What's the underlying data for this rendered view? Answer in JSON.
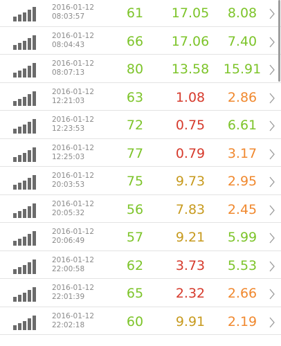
{
  "colors": {
    "green": "#7dc42a",
    "red": "#d63a2c",
    "orange": "#f0882e",
    "olive": "#c79a1e",
    "timestamp_text": "#8a8a8a",
    "divider": "#e3e3e3",
    "signal_icon": "#6b6b6b"
  },
  "icons": {
    "signal": "signal-strength-bars-icon",
    "chevron": "chevron-right-icon"
  },
  "rows": [
    {
      "date": "2016-01-12",
      "time": "08:03:57",
      "v1": "61",
      "v1_color": "green",
      "v2": "17.05",
      "v2_color": "green",
      "v3": "8.08",
      "v3_color": "green"
    },
    {
      "date": "2016-01-12",
      "time": "08:04:43",
      "v1": "66",
      "v1_color": "green",
      "v2": "17.06",
      "v2_color": "green",
      "v3": "7.40",
      "v3_color": "green"
    },
    {
      "date": "2016-01-12",
      "time": "08:07:13",
      "v1": "80",
      "v1_color": "green",
      "v2": "13.58",
      "v2_color": "green",
      "v3": "15.91",
      "v3_color": "green"
    },
    {
      "date": "2016-01-12",
      "time": "12:21:03",
      "v1": "63",
      "v1_color": "green",
      "v2": "1.08",
      "v2_color": "red",
      "v3": "2.86",
      "v3_color": "orange"
    },
    {
      "date": "2016-01-12",
      "time": "12:23:53",
      "v1": "72",
      "v1_color": "green",
      "v2": "0.75",
      "v2_color": "red",
      "v3": "6.61",
      "v3_color": "green"
    },
    {
      "date": "2016-01-12",
      "time": "12:25:03",
      "v1": "77",
      "v1_color": "green",
      "v2": "0.79",
      "v2_color": "red",
      "v3": "3.17",
      "v3_color": "orange"
    },
    {
      "date": "2016-01-12",
      "time": "20:03:53",
      "v1": "75",
      "v1_color": "green",
      "v2": "9.73",
      "v2_color": "olive",
      "v3": "2.95",
      "v3_color": "orange"
    },
    {
      "date": "2016-01-12",
      "time": "20:05:32",
      "v1": "56",
      "v1_color": "green",
      "v2": "7.83",
      "v2_color": "olive",
      "v3": "2.45",
      "v3_color": "orange"
    },
    {
      "date": "2016-01-12",
      "time": "20:06:49",
      "v1": "57",
      "v1_color": "green",
      "v2": "9.21",
      "v2_color": "olive",
      "v3": "5.99",
      "v3_color": "green"
    },
    {
      "date": "2016-01-12",
      "time": "22:00:58",
      "v1": "62",
      "v1_color": "green",
      "v2": "3.73",
      "v2_color": "red",
      "v3": "5.53",
      "v3_color": "green"
    },
    {
      "date": "2016-01-12",
      "time": "22:01:39",
      "v1": "65",
      "v1_color": "green",
      "v2": "2.32",
      "v2_color": "red",
      "v3": "2.66",
      "v3_color": "orange"
    },
    {
      "date": "2016-01-12",
      "time": "22:02:18",
      "v1": "60",
      "v1_color": "green",
      "v2": "9.91",
      "v2_color": "olive",
      "v3": "2.19",
      "v3_color": "orange"
    }
  ]
}
